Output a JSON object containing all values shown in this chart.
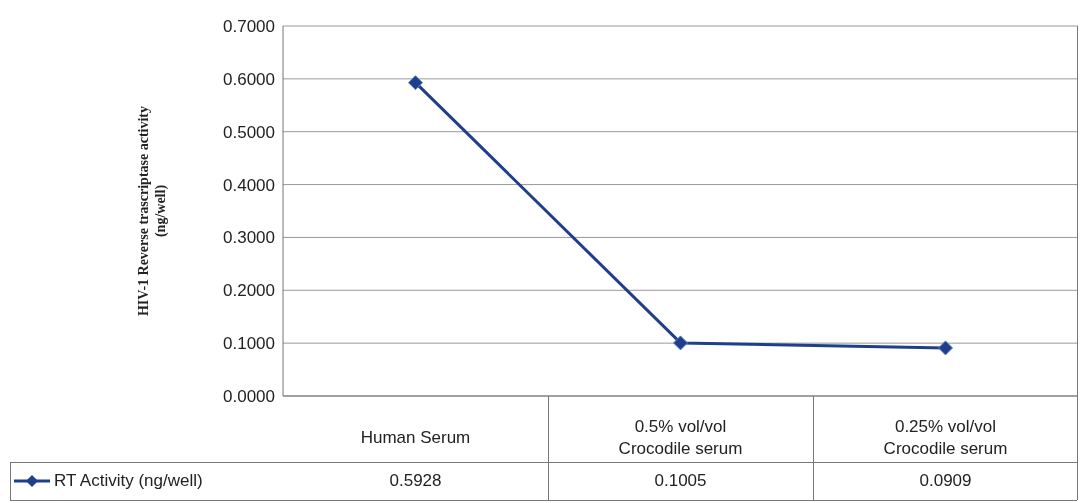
{
  "chart_data": {
    "type": "line",
    "ylabel": "HIV-1  Reverse trascriptase activity\n(ng/well)",
    "categories": [
      "Human Serum",
      "0.5% vol/vol\nCrocodile serum",
      "0.25% vol/vol\nCrocodile serum"
    ],
    "series": [
      {
        "name": "RT Activity (ng/well)",
        "color": "#1f3f8c",
        "values": [
          0.5928,
          0.1005,
          0.0909
        ]
      }
    ],
    "ylim": [
      0,
      0.7
    ],
    "yticks": [
      {
        "value": 0,
        "label": "0.0000"
      },
      {
        "value": 0.1,
        "label": "0.1000"
      },
      {
        "value": 0.2,
        "label": "0.2000"
      },
      {
        "value": 0.3,
        "label": "0.3000"
      },
      {
        "value": 0.4,
        "label": "0.4000"
      },
      {
        "value": 0.5,
        "label": "0.5000"
      },
      {
        "value": 0.6,
        "label": "0.6000"
      },
      {
        "value": 0.7,
        "label": "0.7000"
      }
    ],
    "grid": "y",
    "marker": "diamond",
    "line_style": "solid",
    "legend": "bottom left",
    "data_labels": true
  }
}
